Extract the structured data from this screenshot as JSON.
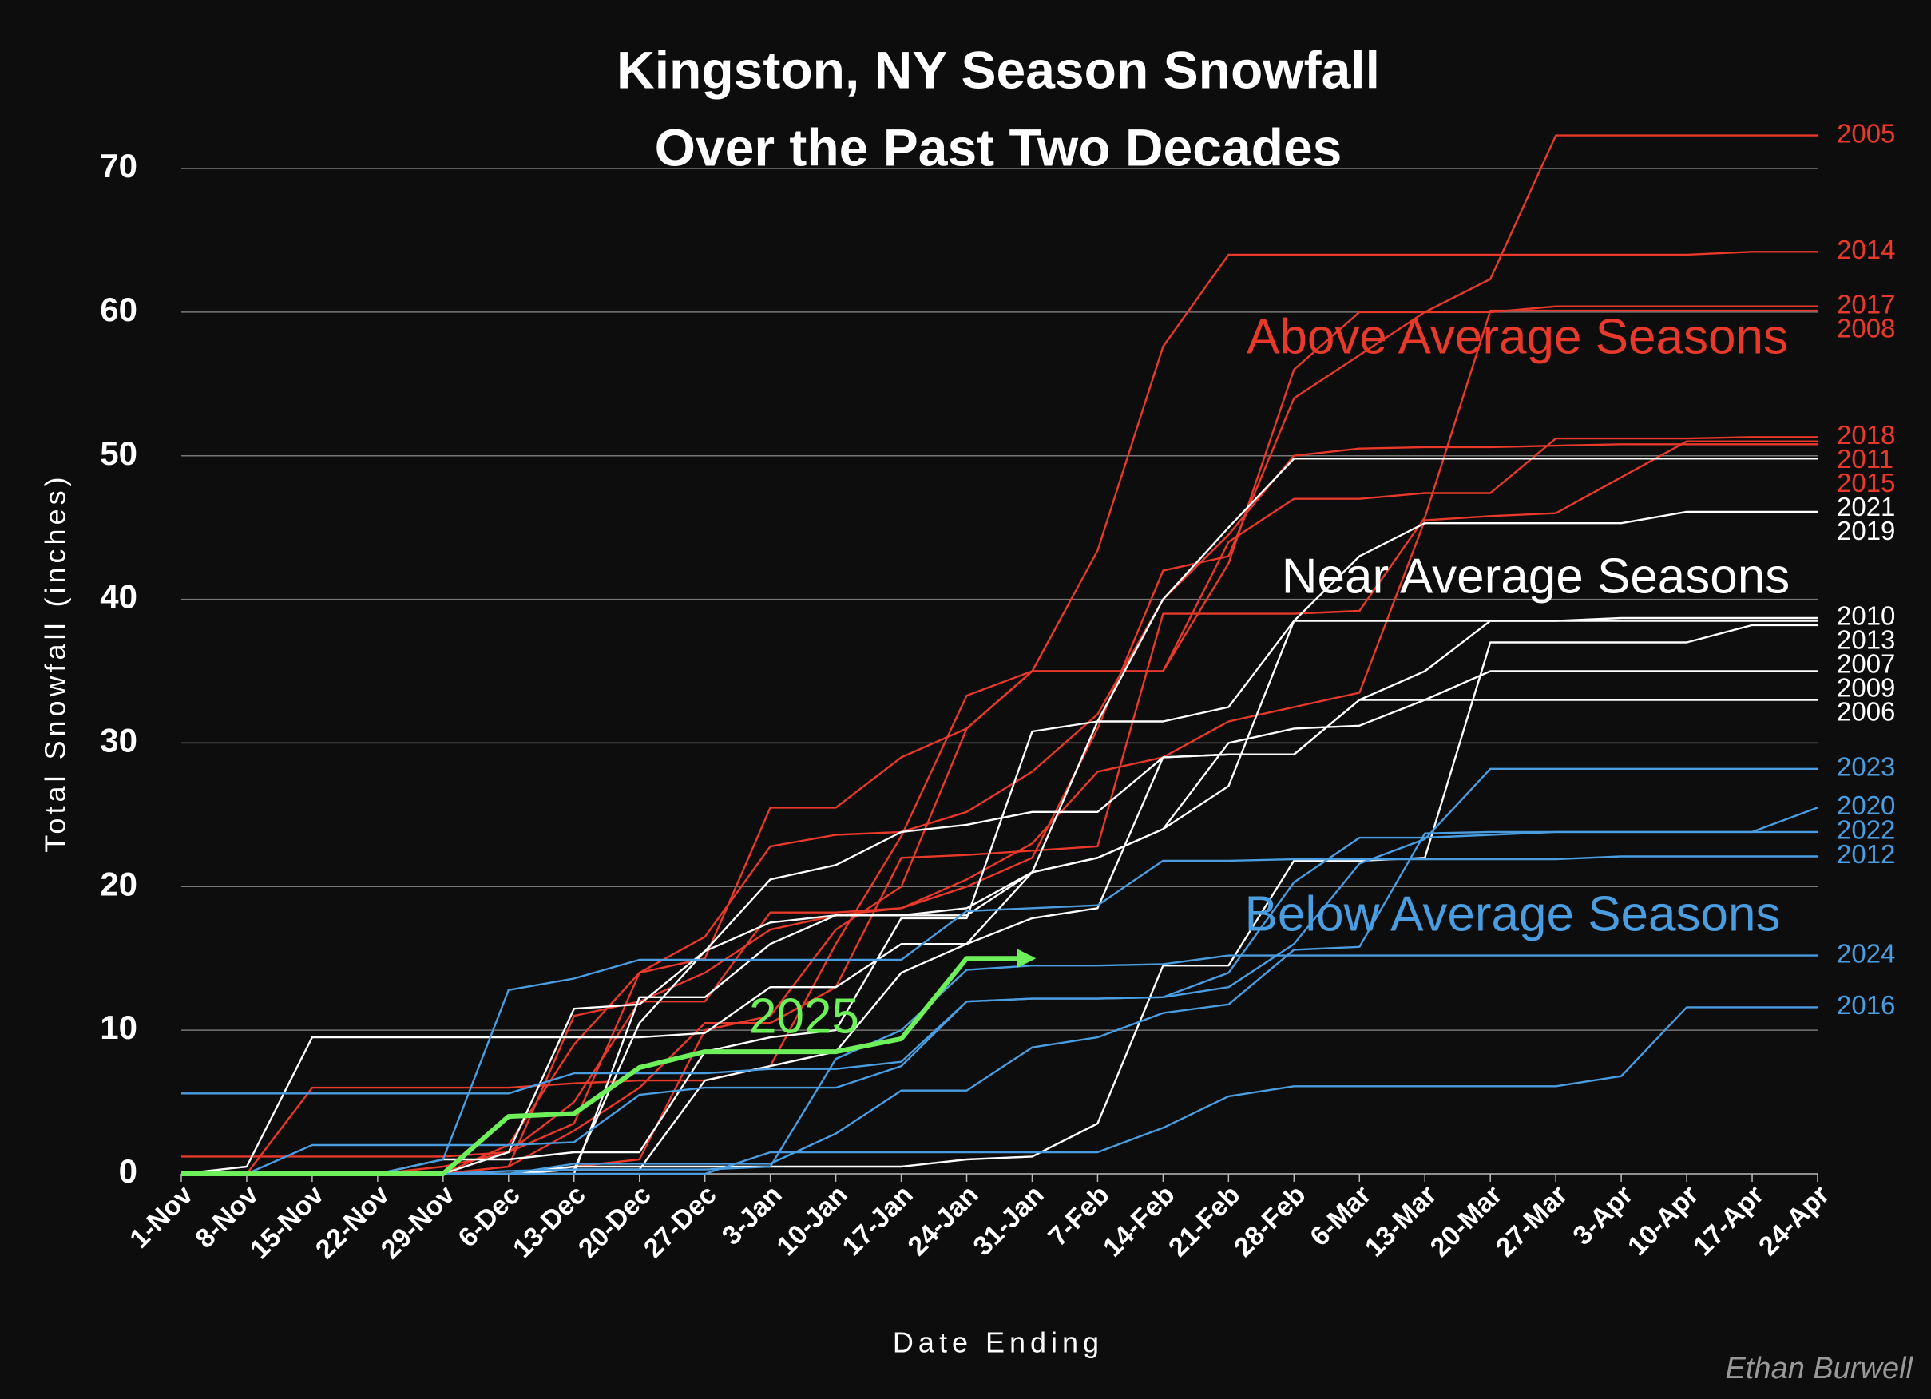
{
  "chart_data": {
    "type": "line",
    "title": [
      "Kingston, NY Season Snowfall",
      "Over the Past Two Decades"
    ],
    "x_label": "Date Ending",
    "y_label": "Total Snowfall (inches)",
    "credit": "Ethan Burwell",
    "annotations": [
      {
        "text": "Above Average Seasons",
        "color": "#e8392b"
      },
      {
        "text": "Near Average Seasons",
        "color": "#ffffff"
      },
      {
        "text": "Below Average Seasons",
        "color": "#4a9de0"
      }
    ],
    "categories": [
      "1-Nov",
      "8-Nov",
      "15-Nov",
      "22-Nov",
      "29-Nov",
      "6-Dec",
      "13-Dec",
      "20-Dec",
      "27-Dec",
      "3-Jan",
      "10-Jan",
      "17-Jan",
      "24-Jan",
      "31-Jan",
      "7-Feb",
      "14-Feb",
      "21-Feb",
      "28-Feb",
      "6-Mar",
      "13-Mar",
      "20-Mar",
      "27-Mar",
      "3-Apr",
      "10-Apr",
      "17-Apr",
      "24-Apr"
    ],
    "ylim": [
      0,
      75
    ],
    "yticks": [
      0,
      10,
      20,
      30,
      40,
      50,
      60,
      70
    ],
    "grid": true,
    "series": [
      {
        "name": "2005",
        "color": "#e8392b",
        "values": [
          0,
          0,
          0,
          0,
          0.5,
          1.5,
          5,
          12,
          14,
          17,
          18,
          18.5,
          20,
          22,
          31,
          42,
          43,
          54,
          57,
          60,
          62.3,
          72.3,
          72.3,
          72.3,
          72.3,
          72.3
        ]
      },
      {
        "name": "2014",
        "color": "#e8392b",
        "values": [
          0,
          0,
          0,
          0,
          0,
          2,
          9,
          14,
          15,
          25.5,
          25.5,
          29,
          31,
          35,
          43.4,
          57.6,
          64,
          64,
          64,
          64,
          64,
          64,
          64,
          64,
          64.2,
          64.2
        ]
      },
      {
        "name": "2017",
        "color": "#e8392b",
        "values": [
          0,
          0,
          0,
          0,
          0,
          0,
          0.5,
          1,
          10,
          11,
          17,
          20,
          31,
          35,
          35,
          35,
          42.5,
          56,
          60,
          60,
          60,
          60.4,
          60.4,
          60.4,
          60.4,
          60.4
        ]
      },
      {
        "name": "2008",
        "color": "#e8392b",
        "values": [
          0,
          0,
          0,
          0,
          0,
          0.5,
          3,
          6,
          10.5,
          10.5,
          13,
          22,
          22.2,
          22.5,
          22.8,
          39,
          39,
          39,
          39.2,
          45.7,
          60.1,
          60.1,
          60.1,
          60.1,
          60.1,
          60.1
        ]
      },
      {
        "name": "2018",
        "color": "#e8392b",
        "values": [
          0,
          0,
          6,
          6,
          6,
          6,
          6.3,
          6.5,
          6.5,
          7.5,
          16,
          23.5,
          33.3,
          35,
          35,
          35,
          44,
          47,
          47,
          47.4,
          47.4,
          51.2,
          51.2,
          51.2,
          51.3,
          51.3
        ]
      },
      {
        "name": "2011",
        "color": "#e8392b",
        "values": [
          0,
          0,
          0,
          0,
          0,
          0.5,
          11,
          12,
          12,
          18.2,
          18.2,
          18.5,
          20.5,
          23,
          28,
          29,
          31.5,
          32.5,
          33.5,
          45.5,
          45.8,
          46,
          48.5,
          51,
          51,
          51
        ]
      },
      {
        "name": "2015",
        "color": "#e8392b",
        "values": [
          1.2,
          1.2,
          1.2,
          1.2,
          1.2,
          1.5,
          3.5,
          14,
          16.5,
          22.8,
          23.6,
          23.8,
          25.2,
          28,
          32,
          40,
          44.5,
          50,
          50.5,
          50.6,
          50.6,
          50.7,
          50.8,
          50.8,
          50.8,
          50.8
        ]
      },
      {
        "name": "2021",
        "color": "#ffffff",
        "values": [
          0,
          0,
          0,
          0,
          1,
          1,
          1.5,
          1.5,
          8.5,
          9.5,
          10,
          17.8,
          17.8,
          30.8,
          31.5,
          40,
          45,
          49.8,
          49.8,
          49.8,
          49.8,
          49.8,
          49.8,
          49.8,
          49.8,
          49.8
        ]
      },
      {
        "name": "2019",
        "color": "#ffffff",
        "values": [
          0,
          0,
          0,
          0,
          0,
          0,
          0,
          12.3,
          12.3,
          16,
          18,
          18,
          18,
          21,
          22,
          24,
          27,
          38.5,
          43,
          45.3,
          45.3,
          45.3,
          45.3,
          46.1,
          46.1,
          46.1
        ]
      },
      {
        "name": "2010",
        "color": "#ffffff",
        "values": [
          0,
          0,
          0,
          0,
          0,
          1.5,
          11.5,
          11.8,
          15.5,
          20.5,
          21.5,
          23.8,
          24.3,
          25.2,
          25.2,
          29,
          29.2,
          29.2,
          33,
          35,
          38.5,
          38.5,
          38.7,
          38.7,
          38.7,
          38.7
        ]
      },
      {
        "name": "2013",
        "color": "#ffffff",
        "values": [
          0,
          0,
          0,
          0,
          0,
          0,
          0.3,
          10.5,
          15.5,
          17.5,
          18,
          18,
          18.5,
          21,
          31.5,
          31.5,
          32.5,
          38.5,
          38.5,
          38.5,
          38.5,
          38.5,
          38.5,
          38.5,
          38.5,
          38.5
        ]
      },
      {
        "name": "2007",
        "color": "#ffffff",
        "values": [
          0,
          0,
          0,
          0,
          0,
          0,
          0.5,
          0.5,
          0.5,
          0.5,
          0.5,
          0.5,
          1,
          1.2,
          3.5,
          14.5,
          14.5,
          21.8,
          21.8,
          22,
          37,
          37,
          37,
          37,
          38.2,
          38.2
        ]
      },
      {
        "name": "2009",
        "color": "#ffffff",
        "values": [
          0,
          0.5,
          9.5,
          9.5,
          9.5,
          9.5,
          9.5,
          9.5,
          9.8,
          13,
          13,
          16,
          16,
          21,
          22,
          24,
          30,
          31,
          31.2,
          33,
          35,
          35,
          35,
          35,
          35,
          35
        ]
      },
      {
        "name": "2006",
        "color": "#ffffff",
        "values": [
          0,
          0,
          0,
          0,
          0,
          0,
          0.3,
          0.3,
          6.5,
          7.5,
          8.5,
          14,
          16,
          17.8,
          18.5,
          29,
          29.2,
          29.2,
          33,
          33,
          33,
          33,
          33,
          33,
          33,
          33
        ]
      },
      {
        "name": "2023",
        "color": "#4a9de0",
        "values": [
          0,
          0,
          2,
          2,
          2,
          2,
          2.2,
          5.5,
          6,
          6,
          6,
          7.5,
          12,
          12.2,
          12.2,
          12.3,
          13,
          16,
          21.6,
          23.3,
          28.2,
          28.2,
          28.2,
          28.2,
          28.2,
          28.2
        ]
      },
      {
        "name": "2020",
        "color": "#4a9de0",
        "values": [
          5.6,
          5.6,
          5.6,
          5.6,
          5.6,
          5.6,
          7,
          7,
          7,
          7.3,
          7.3,
          7.8,
          12,
          12.2,
          12.2,
          12.3,
          14,
          20.3,
          23.4,
          23.4,
          23.6,
          23.8,
          23.8,
          23.8,
          23.8,
          25.5
        ]
      },
      {
        "name": "2022",
        "color": "#4a9de0",
        "values": [
          0,
          0,
          0,
          0,
          0,
          0,
          0.7,
          0.7,
          0.7,
          0.7,
          2.8,
          5.8,
          5.8,
          8.8,
          9.5,
          11.2,
          11.8,
          15.6,
          15.8,
          23.7,
          23.8,
          23.8,
          23.8,
          23.8,
          23.8,
          23.8
        ]
      },
      {
        "name": "2012",
        "color": "#4a9de0",
        "values": [
          0,
          0,
          0,
          0,
          1,
          12.8,
          13.6,
          14.9,
          14.9,
          14.9,
          14.9,
          14.9,
          18.3,
          18.5,
          18.7,
          21.8,
          21.8,
          21.9,
          21.9,
          21.9,
          21.9,
          21.9,
          22.1,
          22.1,
          22.1,
          22.1
        ]
      },
      {
        "name": "2024",
        "color": "#4a9de0",
        "values": [
          0,
          0,
          0,
          0,
          0,
          0.2,
          0.3,
          0.3,
          0.3,
          0.5,
          8,
          10,
          14.2,
          14.5,
          14.5,
          14.6,
          15.2,
          15.2,
          15.2,
          15.2,
          15.2,
          15.2,
          15.2,
          15.2,
          15.2,
          15.2
        ]
      },
      {
        "name": "2016",
        "color": "#4a9de0",
        "values": [
          0,
          0,
          0,
          0,
          0,
          0,
          0,
          0,
          0,
          1.5,
          1.5,
          1.5,
          1.5,
          1.5,
          1.5,
          3.2,
          5.4,
          6.1,
          6.1,
          6.1,
          6.1,
          6.1,
          6.8,
          11.6,
          11.6,
          11.6
        ]
      }
    ],
    "highlight": {
      "name": "2025",
      "color": "#6ef05a",
      "values": [
        0,
        0,
        0,
        0,
        0,
        4,
        4.2,
        7.4,
        8.5,
        8.5,
        8.5,
        9.4,
        15,
        15,
        null,
        null,
        null,
        null,
        null,
        null,
        null,
        null,
        null,
        null,
        null,
        null
      ]
    }
  }
}
